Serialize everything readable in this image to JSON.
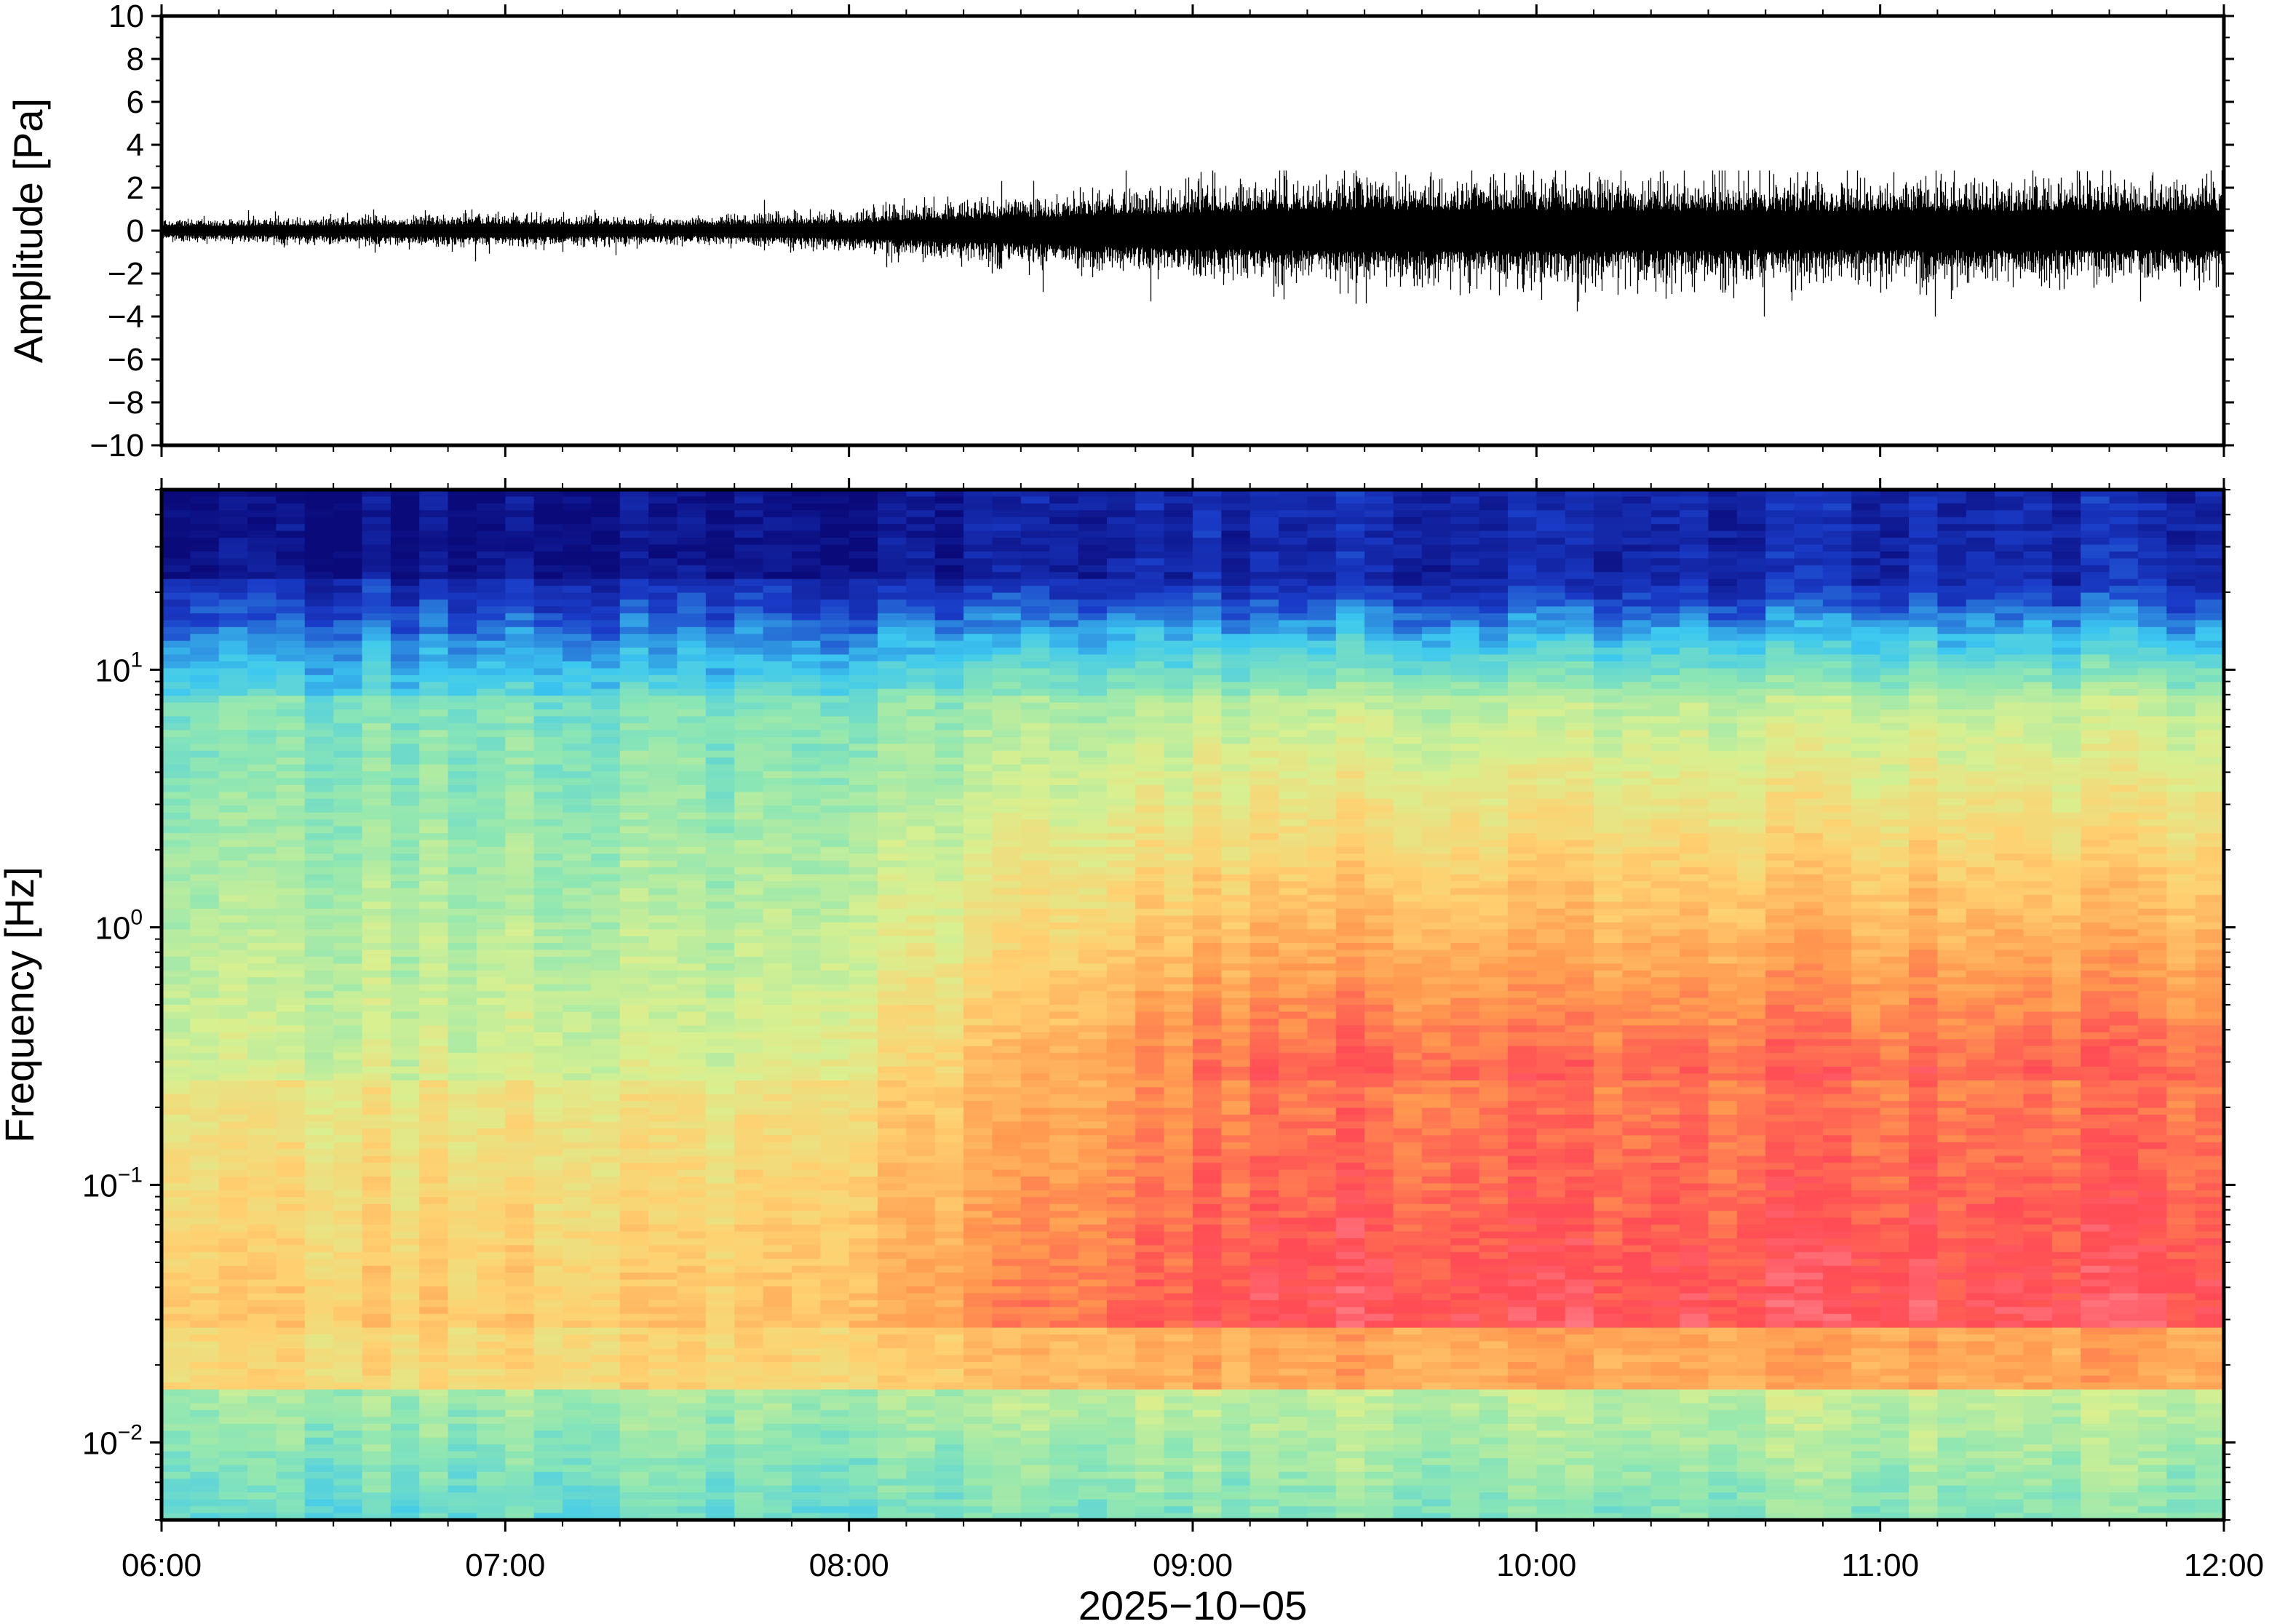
{
  "chart_data": [
    {
      "type": "line",
      "panel": "waveform",
      "ylabel": "Amplitude [Pa]",
      "ylim": [
        -10,
        10
      ],
      "yticks": [
        "10",
        "8",
        "6",
        "4",
        "2",
        "0",
        "−2",
        "−4",
        "−6",
        "−8",
        "−10"
      ],
      "x_range": [
        "06:00",
        "12:00"
      ],
      "envelope": {
        "description_units": "Pa",
        "times": [
          "06:00",
          "06:30",
          "07:00",
          "07:30",
          "08:00",
          "08:20",
          "08:40",
          "09:00",
          "09:30",
          "10:00",
          "10:30",
          "11:00",
          "11:30",
          "12:00"
        ],
        "typical_half_range": [
          0.35,
          0.4,
          0.5,
          0.4,
          0.6,
          0.9,
          1.1,
          1.4,
          1.6,
          1.6,
          1.5,
          1.5,
          1.5,
          1.5
        ],
        "peak_max": 2.8,
        "peak_min": -4.0
      },
      "grid": false
    },
    {
      "type": "heatmap",
      "panel": "spectrogram",
      "ylabel": "Frequency [Hz]",
      "yscale": "log",
      "ylim": [
        0.005,
        50
      ],
      "yticks": [
        {
          "base": "10",
          "exp": "1"
        },
        {
          "base": "10",
          "exp": "0"
        },
        {
          "base": "10",
          "exp": "−1"
        },
        {
          "base": "10",
          "exp": "−2"
        }
      ],
      "colormap": "rainbow",
      "colors": {
        "low": "#0a0a7a",
        "mid_low": "#3cc8f0",
        "mid": "#d8f090",
        "mid_high": "#ff9a50",
        "high": "#ff4b55",
        "peak": "#ffa0a8"
      },
      "grid": false
    }
  ],
  "x_axis": {
    "ticks": [
      "06:00",
      "07:00",
      "08:00",
      "09:00",
      "10:00",
      "11:00",
      "12:00"
    ],
    "date_label": "2025−10−05"
  }
}
